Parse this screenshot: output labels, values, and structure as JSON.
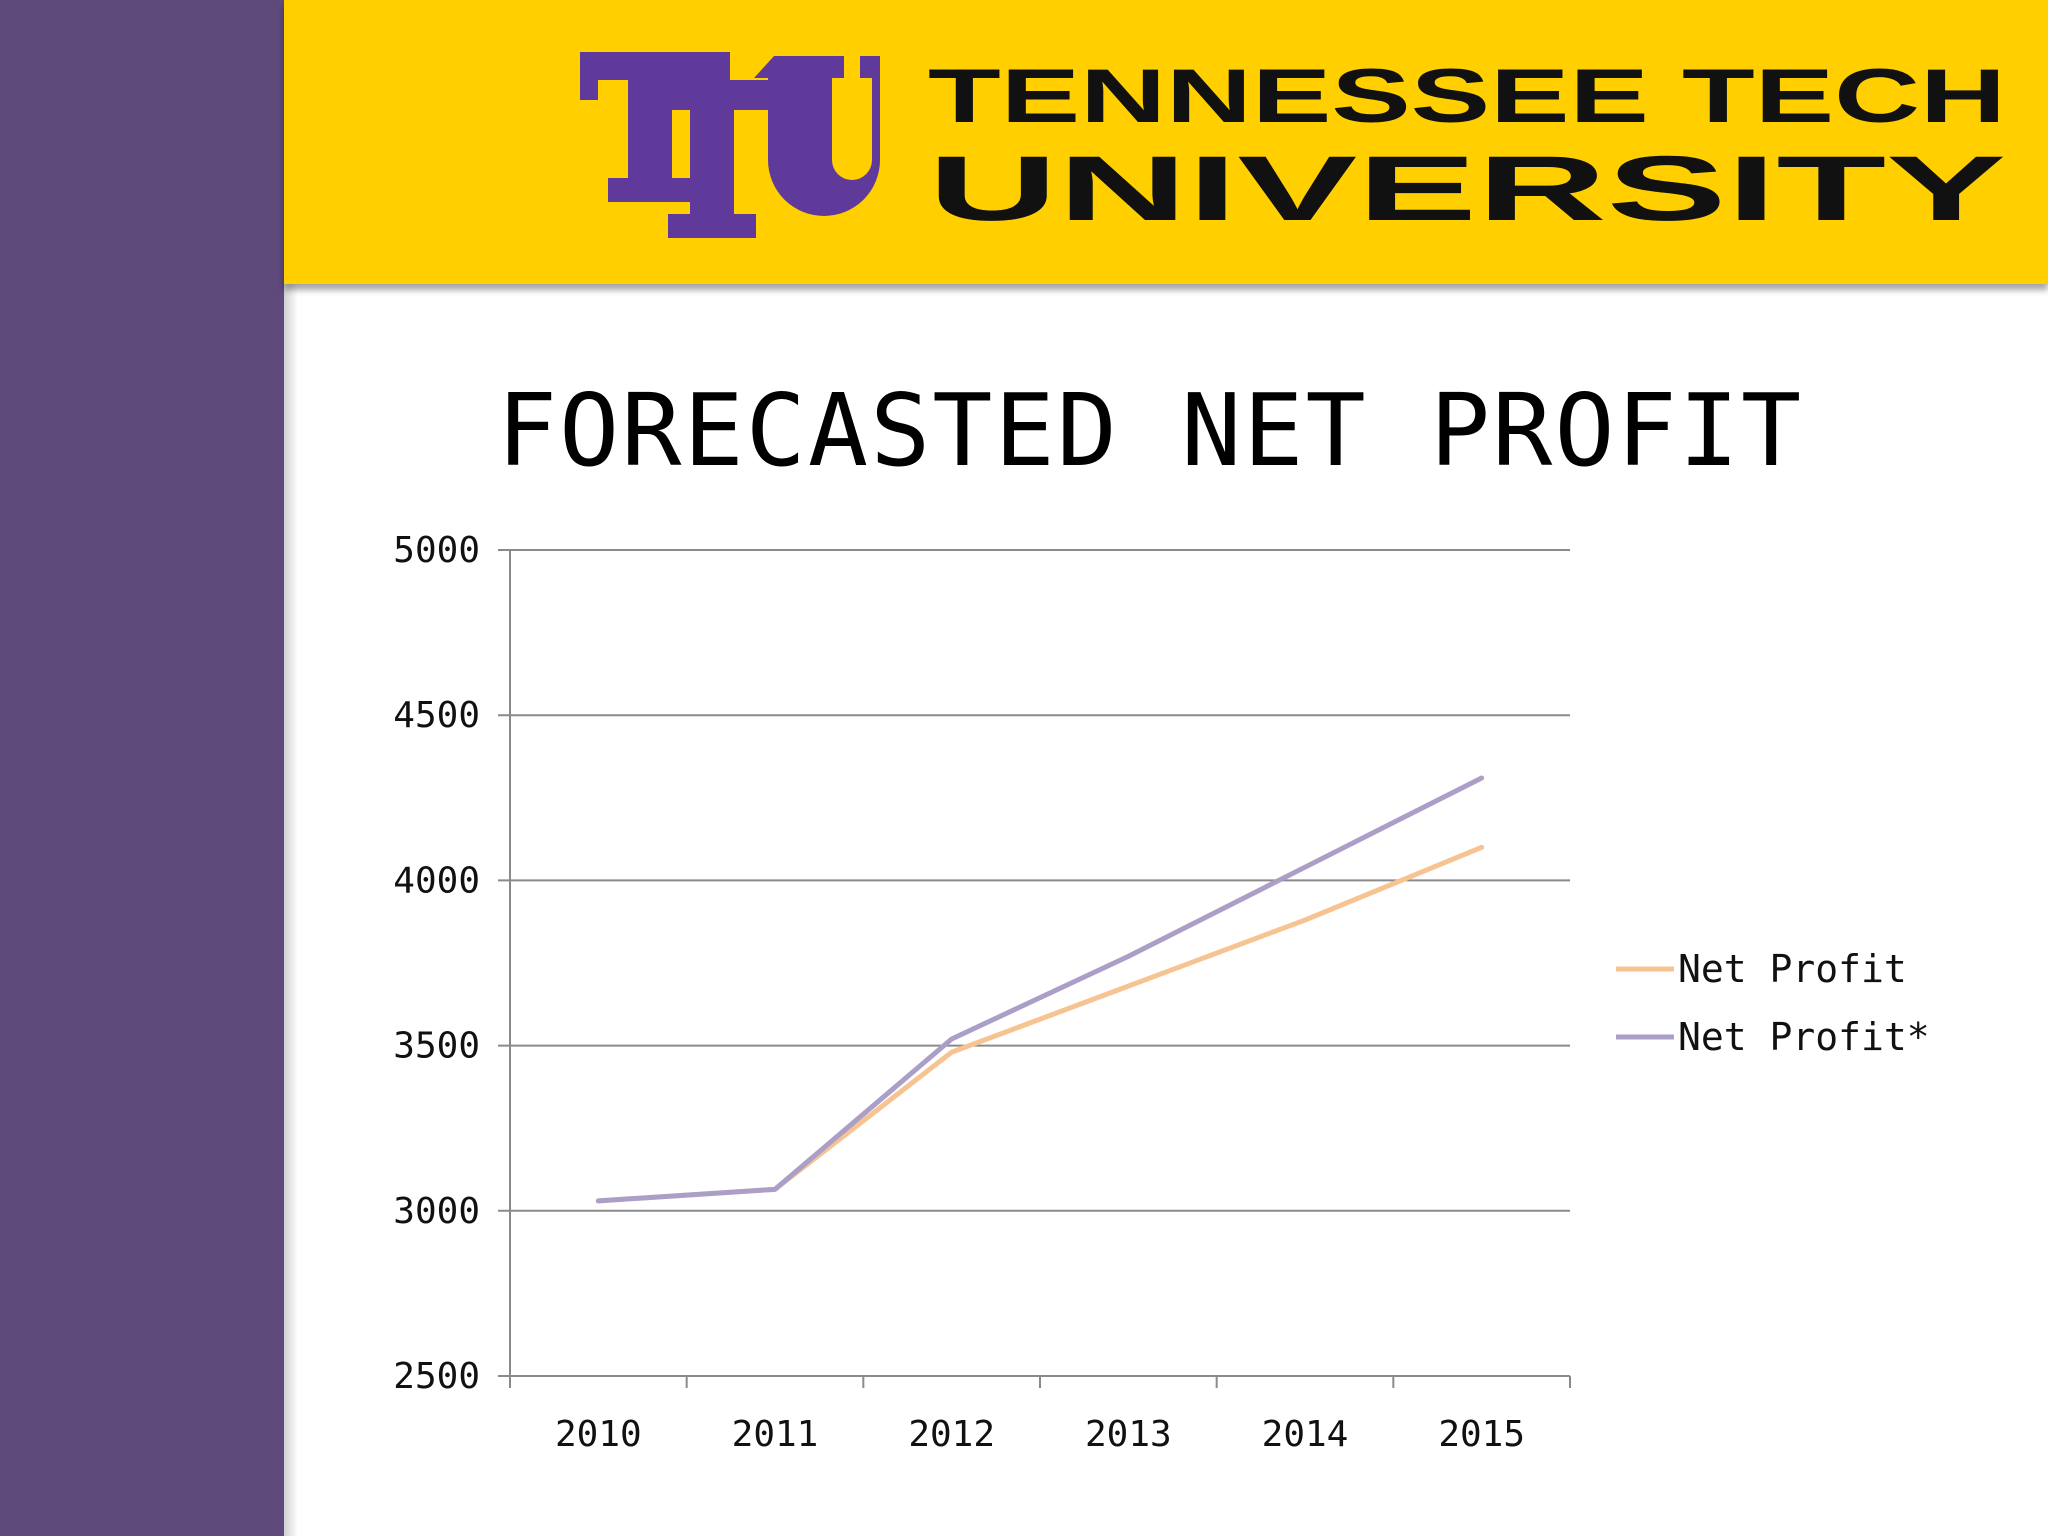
{
  "brand": {
    "logo_letters": "TTU",
    "name_line1": "TENNESSEE TECH",
    "name_line2": "UNIVERSITY",
    "colors": {
      "purple": "#5f3a9a",
      "gold": "#ffcf00",
      "sidebar": "#5e4a7b"
    }
  },
  "slide": {
    "title": "FORECASTED NET PROFIT"
  },
  "chart_data": {
    "type": "line",
    "title": "",
    "xlabel": "",
    "ylabel": "",
    "categories": [
      "2010",
      "2011",
      "2012",
      "2013",
      "2014",
      "2015"
    ],
    "ylim": [
      2500,
      5000
    ],
    "yticks": [
      2500,
      3000,
      3500,
      4000,
      4500,
      5000
    ],
    "grid": true,
    "legend_position": "right",
    "series": [
      {
        "name": "Net Profit",
        "color": "#f7c391",
        "values": [
          3030,
          3065,
          3480,
          3680,
          3880,
          4100
        ]
      },
      {
        "name": "Net Profit*",
        "color": "#ab9fc8",
        "values": [
          3030,
          3065,
          3520,
          3770,
          4040,
          4310
        ]
      }
    ]
  }
}
